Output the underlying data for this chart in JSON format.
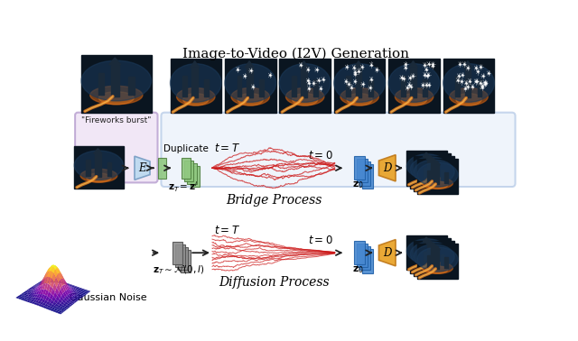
{
  "title": "Image-to-Video (I2V) Generation",
  "title_fontsize": 11,
  "fireworks_label": "\"Fireworks burst\"",
  "bridge_label": "Bridge Process",
  "diffusion_label": "Diffusion Process",
  "gaussian_label": "Gaussian Noise",
  "duplicate_label": "Duplicate",
  "E_label": "E",
  "D_label": "D",
  "bg_color": "#ffffff",
  "top_box_color": "#dce8f8",
  "top_box_border": "#8aaad8",
  "input_box_color": "#e8d8f0",
  "input_box_border": "#a080c0",
  "encoder_color_light": "#b8d8f0",
  "encoder_color_dark": "#7098c0",
  "green_color": "#90c880",
  "green_border": "#508040",
  "blue_color": "#4888d0",
  "blue_border": "#2060a8",
  "orange_color": "#e8a020",
  "orange_border": "#c07818",
  "gray_color": "#909090",
  "gray_border": "#505050",
  "red_line_color": "#cc1818",
  "arrow_color": "#222222",
  "dark_img_color": "#0a1520",
  "castle_orange": "#d06010",
  "castle_blue": "#153050",
  "castle_glow": "#f08020",
  "fireworks_white": "#e0e8f8"
}
